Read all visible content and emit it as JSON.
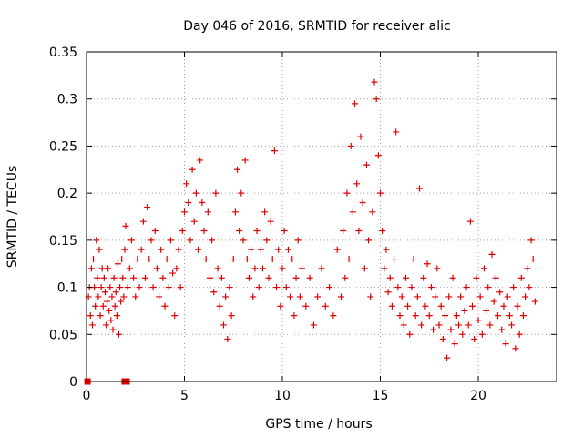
{
  "colors": {
    "series": "#e00000",
    "grid": "#a0a0a0",
    "axis": "#000000"
  },
  "chart_data": {
    "type": "scatter",
    "title": "Day 046 of 2016, SRMTID for receiver alic",
    "xlabel": "GPS time / hours",
    "ylabel": "SRMTID / TECUs",
    "xlim": [
      0,
      24
    ],
    "ylim": [
      0,
      0.35
    ],
    "x_ticks": [
      0,
      5,
      10,
      15,
      20
    ],
    "x_tick_labels": [
      "0",
      "5",
      "10",
      "15",
      "20"
    ],
    "y_ticks": [
      0,
      0.05,
      0.1,
      0.15,
      0.2,
      0.25,
      0.3,
      0.35
    ],
    "y_tick_labels": [
      "0",
      "0.05",
      "0.1",
      "0.15",
      "0.2",
      "0.25",
      "0.3",
      "0.35"
    ],
    "grid": true,
    "series": [
      {
        "name": "SRMTID",
        "marker": "plus",
        "points": [
          [
            0.1,
            0.09
          ],
          [
            0.15,
            0.1
          ],
          [
            0.2,
            0.07
          ],
          [
            0.25,
            0.12
          ],
          [
            0.3,
            0.06
          ],
          [
            0.35,
            0.13
          ],
          [
            0.4,
            0.1
          ],
          [
            0.45,
            0.08
          ],
          [
            0.5,
            0.15
          ],
          [
            0.55,
            0.11
          ],
          [
            0.6,
            0.09
          ],
          [
            0.65,
            0.14
          ],
          [
            0.7,
            0.07
          ],
          [
            0.75,
            0.1
          ],
          [
            0.8,
            0.12
          ],
          [
            0.85,
            0.08
          ],
          [
            0.9,
            0.11
          ],
          [
            0.95,
            0.095
          ],
          [
            1.0,
            0.06
          ],
          [
            1.05,
            0.085
          ],
          [
            1.1,
            0.12
          ],
          [
            1.15,
            0.075
          ],
          [
            1.2,
            0.1
          ],
          [
            1.25,
            0.065
          ],
          [
            1.3,
            0.09
          ],
          [
            1.35,
            0.055
          ],
          [
            1.4,
            0.11
          ],
          [
            1.45,
            0.08
          ],
          [
            1.5,
            0.095
          ],
          [
            1.55,
            0.07
          ],
          [
            1.6,
            0.125
          ],
          [
            1.65,
            0.05
          ],
          [
            1.7,
            0.1
          ],
          [
            1.75,
            0.085
          ],
          [
            1.8,
            0.13
          ],
          [
            1.85,
            0.11
          ],
          [
            1.9,
            0.09
          ],
          [
            1.95,
            0.14
          ],
          [
            2.0,
            0.165
          ],
          [
            2.1,
            0.1
          ],
          [
            2.2,
            0.12
          ],
          [
            2.3,
            0.15
          ],
          [
            2.4,
            0.11
          ],
          [
            2.5,
            0.09
          ],
          [
            2.6,
            0.13
          ],
          [
            2.7,
            0.1
          ],
          [
            2.8,
            0.14
          ],
          [
            2.9,
            0.17
          ],
          [
            3.0,
            0.11
          ],
          [
            3.1,
            0.185
          ],
          [
            3.2,
            0.13
          ],
          [
            3.3,
            0.15
          ],
          [
            3.4,
            0.1
          ],
          [
            3.5,
            0.16
          ],
          [
            3.6,
            0.12
          ],
          [
            3.7,
            0.09
          ],
          [
            3.8,
            0.14
          ],
          [
            3.9,
            0.11
          ],
          [
            4.0,
            0.08
          ],
          [
            4.1,
            0.13
          ],
          [
            4.2,
            0.1
          ],
          [
            4.3,
            0.15
          ],
          [
            4.4,
            0.115
          ],
          [
            4.5,
            0.07
          ],
          [
            4.6,
            0.12
          ],
          [
            4.7,
            0.14
          ],
          [
            4.8,
            0.1
          ],
          [
            4.9,
            0.16
          ],
          [
            5.0,
            0.18
          ],
          [
            5.1,
            0.21
          ],
          [
            5.2,
            0.19
          ],
          [
            5.3,
            0.15
          ],
          [
            5.4,
            0.225
          ],
          [
            5.5,
            0.17
          ],
          [
            5.6,
            0.2
          ],
          [
            5.7,
            0.14
          ],
          [
            5.8,
            0.235
          ],
          [
            5.9,
            0.19
          ],
          [
            6.0,
            0.16
          ],
          [
            6.1,
            0.13
          ],
          [
            6.2,
            0.18
          ],
          [
            6.3,
            0.11
          ],
          [
            6.4,
            0.15
          ],
          [
            6.5,
            0.095
          ],
          [
            6.6,
            0.2
          ],
          [
            6.7,
            0.12
          ],
          [
            6.8,
            0.08
          ],
          [
            6.9,
            0.11
          ],
          [
            7.0,
            0.06
          ],
          [
            7.1,
            0.09
          ],
          [
            7.2,
            0.045
          ],
          [
            7.3,
            0.1
          ],
          [
            7.4,
            0.07
          ],
          [
            7.5,
            0.13
          ],
          [
            7.6,
            0.18
          ],
          [
            7.7,
            0.225
          ],
          [
            7.8,
            0.16
          ],
          [
            7.9,
            0.2
          ],
          [
            8.0,
            0.15
          ],
          [
            8.1,
            0.235
          ],
          [
            8.2,
            0.13
          ],
          [
            8.3,
            0.11
          ],
          [
            8.4,
            0.14
          ],
          [
            8.5,
            0.09
          ],
          [
            8.6,
            0.12
          ],
          [
            8.7,
            0.16
          ],
          [
            8.8,
            0.1
          ],
          [
            8.9,
            0.14
          ],
          [
            9.0,
            0.12
          ],
          [
            9.1,
            0.18
          ],
          [
            9.2,
            0.15
          ],
          [
            9.3,
            0.11
          ],
          [
            9.4,
            0.17
          ],
          [
            9.5,
            0.13
          ],
          [
            9.6,
            0.245
          ],
          [
            9.7,
            0.1
          ],
          [
            9.8,
            0.14
          ],
          [
            9.9,
            0.08
          ],
          [
            10.0,
            0.12
          ],
          [
            10.1,
            0.16
          ],
          [
            10.2,
            0.1
          ],
          [
            10.3,
            0.14
          ],
          [
            10.4,
            0.09
          ],
          [
            10.5,
            0.13
          ],
          [
            10.6,
            0.07
          ],
          [
            10.7,
            0.11
          ],
          [
            10.8,
            0.15
          ],
          [
            10.9,
            0.09
          ],
          [
            11.0,
            0.12
          ],
          [
            11.2,
            0.08
          ],
          [
            11.4,
            0.11
          ],
          [
            11.6,
            0.06
          ],
          [
            11.8,
            0.09
          ],
          [
            12.0,
            0.12
          ],
          [
            12.2,
            0.08
          ],
          [
            12.4,
            0.1
          ],
          [
            12.6,
            0.07
          ],
          [
            12.8,
            0.14
          ],
          [
            13.0,
            0.09
          ],
          [
            13.1,
            0.16
          ],
          [
            13.2,
            0.11
          ],
          [
            13.3,
            0.2
          ],
          [
            13.4,
            0.13
          ],
          [
            13.5,
            0.25
          ],
          [
            13.6,
            0.18
          ],
          [
            13.7,
            0.295
          ],
          [
            13.8,
            0.21
          ],
          [
            13.9,
            0.16
          ],
          [
            14.0,
            0.26
          ],
          [
            14.1,
            0.19
          ],
          [
            14.2,
            0.12
          ],
          [
            14.3,
            0.23
          ],
          [
            14.4,
            0.15
          ],
          [
            14.5,
            0.09
          ],
          [
            14.6,
            0.18
          ],
          [
            14.7,
            0.318
          ],
          [
            14.8,
            0.3
          ],
          [
            14.9,
            0.24
          ],
          [
            15.0,
            0.2
          ],
          [
            15.1,
            0.16
          ],
          [
            15.2,
            0.12
          ],
          [
            15.3,
            0.14
          ],
          [
            15.4,
            0.095
          ],
          [
            15.5,
            0.11
          ],
          [
            15.6,
            0.08
          ],
          [
            15.7,
            0.13
          ],
          [
            15.8,
            0.265
          ],
          [
            15.9,
            0.1
          ],
          [
            16.0,
            0.07
          ],
          [
            16.1,
            0.09
          ],
          [
            16.2,
            0.06
          ],
          [
            16.3,
            0.11
          ],
          [
            16.4,
            0.08
          ],
          [
            16.5,
            0.05
          ],
          [
            16.6,
            0.1
          ],
          [
            16.7,
            0.13
          ],
          [
            16.8,
            0.07
          ],
          [
            16.9,
            0.09
          ],
          [
            17.0,
            0.205
          ],
          [
            17.1,
            0.06
          ],
          [
            17.2,
            0.11
          ],
          [
            17.3,
            0.08
          ],
          [
            17.4,
            0.125
          ],
          [
            17.5,
            0.07
          ],
          [
            17.6,
            0.1
          ],
          [
            17.7,
            0.055
          ],
          [
            17.8,
            0.09
          ],
          [
            17.9,
            0.12
          ],
          [
            18.0,
            0.06
          ],
          [
            18.1,
            0.08
          ],
          [
            18.2,
            0.045
          ],
          [
            18.3,
            0.07
          ],
          [
            18.4,
            0.025
          ],
          [
            18.5,
            0.09
          ],
          [
            18.6,
            0.055
          ],
          [
            18.7,
            0.11
          ],
          [
            18.8,
            0.04
          ],
          [
            18.9,
            0.07
          ],
          [
            19.0,
            0.06
          ],
          [
            19.1,
            0.09
          ],
          [
            19.2,
            0.05
          ],
          [
            19.3,
            0.075
          ],
          [
            19.4,
            0.1
          ],
          [
            19.5,
            0.06
          ],
          [
            19.6,
            0.17
          ],
          [
            19.7,
            0.08
          ],
          [
            19.8,
            0.045
          ],
          [
            19.9,
            0.11
          ],
          [
            20.0,
            0.065
          ],
          [
            20.1,
            0.09
          ],
          [
            20.2,
            0.05
          ],
          [
            20.3,
            0.12
          ],
          [
            20.4,
            0.075
          ],
          [
            20.5,
            0.1
          ],
          [
            20.6,
            0.06
          ],
          [
            20.7,
            0.135
          ],
          [
            20.8,
            0.085
          ],
          [
            20.9,
            0.11
          ],
          [
            21.0,
            0.07
          ],
          [
            21.1,
            0.095
          ],
          [
            21.2,
            0.055
          ],
          [
            21.3,
            0.08
          ],
          [
            21.4,
            0.04
          ],
          [
            21.5,
            0.09
          ],
          [
            21.6,
            0.07
          ],
          [
            21.7,
            0.06
          ],
          [
            21.8,
            0.1
          ],
          [
            21.9,
            0.035
          ],
          [
            22.0,
            0.08
          ],
          [
            22.1,
            0.05
          ],
          [
            22.2,
            0.11
          ],
          [
            22.3,
            0.07
          ],
          [
            22.4,
            0.09
          ],
          [
            22.5,
            0.12
          ],
          [
            22.6,
            0.1
          ],
          [
            22.7,
            0.15
          ],
          [
            22.8,
            0.13
          ],
          [
            22.9,
            0.085
          ]
        ]
      },
      {
        "name": "zero-markers",
        "marker": "square",
        "points": [
          [
            0.05,
            0.0
          ],
          [
            1.95,
            0.0
          ],
          [
            2.05,
            0.0
          ]
        ]
      }
    ]
  }
}
